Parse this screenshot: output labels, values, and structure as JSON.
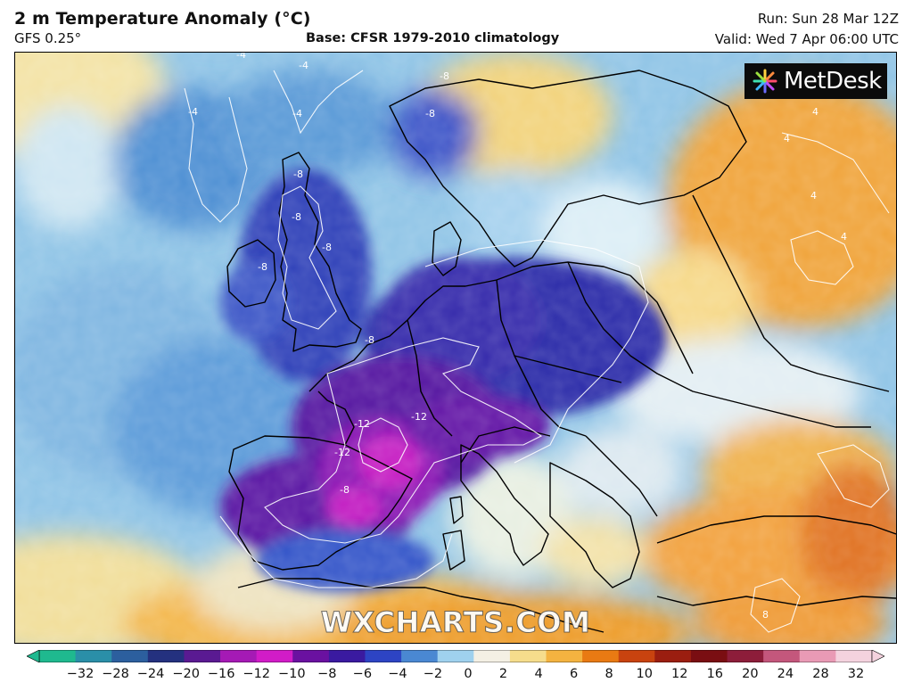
{
  "header": {
    "title": "2 m Temperature Anomaly (°C)",
    "model": "GFS 0.25°",
    "base": "Base: CFSR 1979-2010 climatology",
    "run": "Run: Sun 28 Mar 12Z",
    "valid": "Valid: Wed 7 Apr 06:00 UTC"
  },
  "logo": {
    "text": "MetDesk",
    "icon": "metdesk-burst-icon"
  },
  "watermark": "WXCHARTS.COM",
  "map": {
    "region": "Europe",
    "variable": "2 m temperature anomaly",
    "contour_labels": [
      "-4",
      "-4",
      "-4",
      "-4",
      "-8",
      "-8",
      "-8",
      "-8",
      "-8",
      "-8",
      "-8",
      "-12",
      "-12",
      "-12",
      "-8",
      "4",
      "4",
      "4",
      "4",
      "8"
    ]
  },
  "colorbar": {
    "min": -32,
    "max": 32,
    "ticks": [
      "−32",
      "−28",
      "−24",
      "−20",
      "−16",
      "−12",
      "−10",
      "−8",
      "−6",
      "−4",
      "−2",
      "0",
      "2",
      "4",
      "6",
      "8",
      "10",
      "12",
      "16",
      "20",
      "24",
      "28",
      "32"
    ],
    "colors": [
      "#1fb98f",
      "#2a8fa8",
      "#2c5f9e",
      "#24317f",
      "#5a1a92",
      "#a51ab5",
      "#d11cc7",
      "#6a11a0",
      "#3a1aa0",
      "#2d44c4",
      "#4a88d2",
      "#9fd1ee",
      "#f4f0e4",
      "#f6dd8c",
      "#f4b340",
      "#e97a13",
      "#c9430f",
      "#9b1e10",
      "#7a0e12",
      "#8d1d3a",
      "#c4577c",
      "#e99ab5",
      "#f4d2de"
    ]
  }
}
